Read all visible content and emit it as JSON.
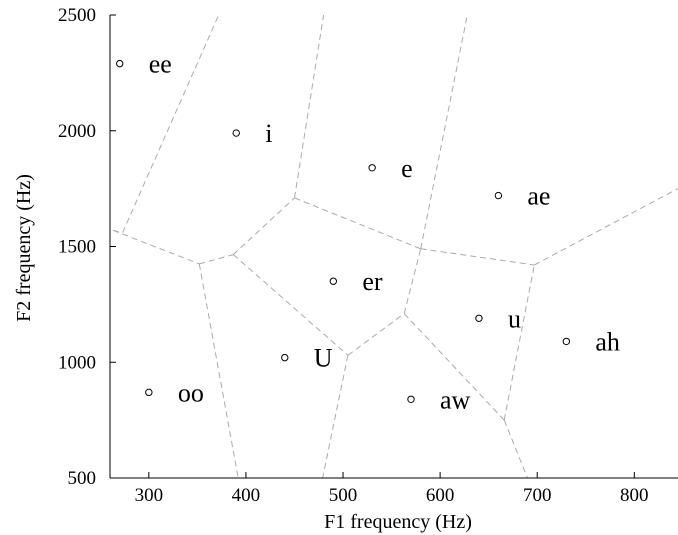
{
  "chart_data": {
    "type": "scatter",
    "title": "",
    "xlabel": "F1 frequency (Hz)",
    "ylabel": "F2 frequency (Hz)",
    "xlim": [
      260,
      845
    ],
    "ylim": [
      500,
      2500
    ],
    "xticks": [
      300,
      400,
      500,
      600,
      700,
      800
    ],
    "yticks": [
      500,
      1000,
      1500,
      2000,
      2500
    ],
    "grid": false,
    "points": [
      {
        "label": "ee",
        "x": 270,
        "y": 2290
      },
      {
        "label": "i",
        "x": 390,
        "y": 1990
      },
      {
        "label": "e",
        "x": 530,
        "y": 1840
      },
      {
        "label": "ae",
        "x": 660,
        "y": 1720
      },
      {
        "label": "er",
        "x": 490,
        "y": 1350
      },
      {
        "label": "u",
        "x": 640,
        "y": 1190
      },
      {
        "label": "ah",
        "x": 730,
        "y": 1090
      },
      {
        "label": "U",
        "x": 440,
        "y": 1020
      },
      {
        "label": "oo",
        "x": 300,
        "y": 870
      },
      {
        "label": "aw",
        "x": 570,
        "y": 840
      }
    ],
    "boundaries": [
      [
        [
          263,
          1570
        ],
        [
          273,
          1560
        ],
        [
          372,
          2500
        ]
      ],
      [
        [
          263,
          1570
        ],
        [
          352,
          1425
        ]
      ],
      [
        [
          352,
          1425
        ],
        [
          387,
          1465
        ]
      ],
      [
        [
          352,
          1425
        ],
        [
          392,
          500
        ]
      ],
      [
        [
          387,
          1465
        ],
        [
          450,
          1710
        ]
      ],
      [
        [
          450,
          1710
        ],
        [
          480,
          2500
        ]
      ],
      [
        [
          450,
          1710
        ],
        [
          580,
          1490
        ]
      ],
      [
        [
          580,
          1490
        ],
        [
          628,
          2500
        ]
      ],
      [
        [
          580,
          1490
        ],
        [
          697,
          1420
        ]
      ],
      [
        [
          697,
          1420
        ],
        [
          845,
          1750
        ]
      ],
      [
        [
          387,
          1465
        ],
        [
          505,
          1030
        ]
      ],
      [
        [
          505,
          1030
        ],
        [
          563,
          1210
        ]
      ],
      [
        [
          563,
          1210
        ],
        [
          580,
          1490
        ]
      ],
      [
        [
          505,
          1030
        ],
        [
          479,
          500
        ]
      ],
      [
        [
          563,
          1210
        ],
        [
          666,
          750
        ]
      ],
      [
        [
          666,
          750
        ],
        [
          697,
          1420
        ]
      ],
      [
        [
          666,
          750
        ],
        [
          690,
          500
        ]
      ]
    ]
  }
}
